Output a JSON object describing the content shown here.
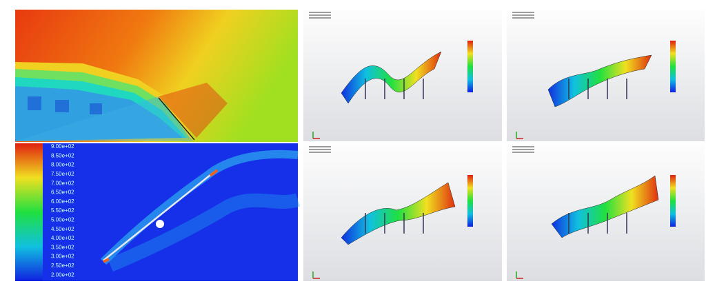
{
  "colorbar": {
    "labels": [
      "9.00e+02",
      "8.50e+02",
      "8.00e+02",
      "7.50e+02",
      "7.00e+02",
      "6.50e+02",
      "6.00e+02",
      "5.50e+02",
      "5.00e+02",
      "4.50e+02",
      "4.00e+02",
      "3.50e+02",
      "3.00e+02",
      "2.50e+02",
      "2.00e+02"
    ]
  }
}
